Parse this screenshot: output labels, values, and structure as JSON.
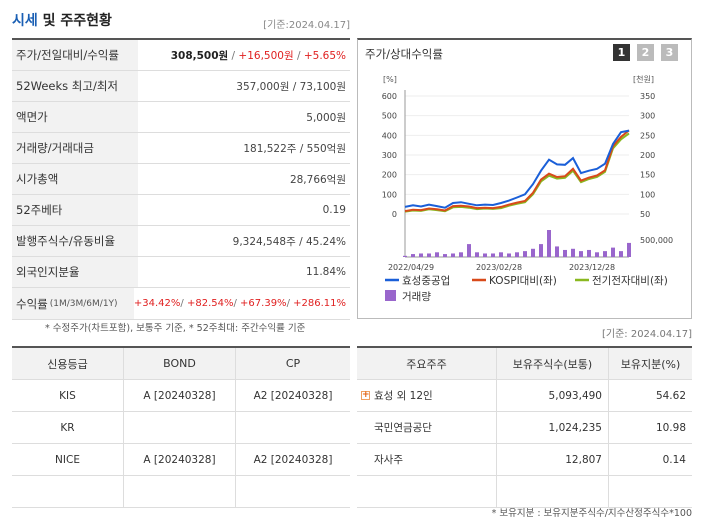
{
  "header": {
    "title_accent": "시세",
    "title_rest": " 및 주주현황",
    "date": "[기준:2024.04.17]"
  },
  "quote": {
    "rows": [
      {
        "label": "주가/전일대비/수익률"
      },
      {
        "label": "52Weeks 최고/최저",
        "value": "357,000원 / 73,100원"
      },
      {
        "label": "액면가",
        "value": "5,000원"
      },
      {
        "label": "거래량/거래대금",
        "value": "181,522주 / 550억원"
      },
      {
        "label": "시가총액",
        "value": "28,766억원"
      },
      {
        "label": "52주베타",
        "value": "0.19"
      },
      {
        "label": "발행주식수/유동비율",
        "value": "9,324,548주 / 45.24%"
      },
      {
        "label": "외국인지분율",
        "value": "11.84%"
      }
    ],
    "price": "308,500원",
    "change": "+16,500원",
    "rate": "+5.65%",
    "sep": " / ",
    "return_label": "수익률",
    "return_periods": "(1M/3M/6M/1Y)",
    "returns": [
      "+34.42%",
      "+82.54%",
      "+67.39%",
      "+286.11%"
    ],
    "note": "* 수정주가(차트포함), 보통주 기준, * 52주최대: 주간수익률 기준"
  },
  "chart_panel": {
    "title": "주가/상대수익률",
    "period_buttons": [
      "1",
      "2",
      "3"
    ],
    "selected": "1",
    "date_note": "[기준: 2024.04.17]"
  },
  "chart_data": {
    "type": "line",
    "left_axis_unit": "[%]",
    "right_axis_unit": "[천원]",
    "left_ticks": [
      0,
      100,
      200,
      300,
      400,
      500,
      600
    ],
    "right_ticks": [
      50,
      100,
      150,
      200,
      250,
      300,
      350
    ],
    "volume_tick": "500,000",
    "x_labels": [
      "2022/04/29",
      "2023/02/28",
      "2023/12/28"
    ],
    "right_ylim": [
      50,
      350
    ],
    "left_ylim": [
      0,
      600
    ],
    "series": [
      {
        "name": "효성중공업",
        "color": "#1a5fd8",
        "axis": "right",
        "values": [
          68,
          72,
          69,
          74,
          70,
          66,
          78,
          80,
          76,
          72,
          74,
          73,
          78,
          84,
          92,
          100,
          126,
          160,
          188,
          176,
          175,
          192,
          154,
          160,
          165,
          178,
          228,
          258,
          262
        ]
      },
      {
        "name": "KOSPI대비(좌)",
        "color": "#d84a1a",
        "axis": "left",
        "values": [
          15,
          22,
          20,
          28,
          24,
          18,
          40,
          42,
          38,
          30,
          32,
          30,
          36,
          48,
          58,
          66,
          108,
          175,
          205,
          188,
          192,
          230,
          170,
          185,
          196,
          222,
          345,
          392,
          425
        ]
      },
      {
        "name": "전기전자대비(좌)",
        "color": "#8ab820",
        "axis": "left",
        "values": [
          12,
          18,
          16,
          24,
          20,
          14,
          34,
          36,
          32,
          25,
          28,
          26,
          30,
          42,
          52,
          60,
          100,
          165,
          195,
          180,
          184,
          220,
          162,
          178,
          188,
          214,
          334,
          380,
          410
        ]
      }
    ],
    "volume": {
      "name": "거래량",
      "color": "#9966cc",
      "values": [
        0.02,
        0.05,
        0.06,
        0.06,
        0.08,
        0.05,
        0.06,
        0.08,
        0.22,
        0.08,
        0.06,
        0.06,
        0.08,
        0.06,
        0.08,
        0.1,
        0.14,
        0.22,
        0.46,
        0.18,
        0.12,
        0.14,
        0.1,
        0.12,
        0.08,
        0.1,
        0.16,
        0.1,
        0.24
      ],
      "max_label_value": 500000
    }
  },
  "credit": {
    "headers": [
      "신용등급",
      "BOND",
      "CP"
    ],
    "rows": [
      [
        "KIS",
        "A [20240328]",
        "A2 [20240328]"
      ],
      [
        "KR",
        "",
        ""
      ],
      [
        "NICE",
        "A [20240328]",
        "A2 [20240328]"
      ],
      [
        "",
        "",
        ""
      ]
    ]
  },
  "holders": {
    "headers": [
      "주요주주",
      "보유주식수(보통)",
      "보유지분(%)"
    ],
    "rows": [
      [
        "효성 외 12인",
        "5,093,490",
        "54.62"
      ],
      [
        "국민연금공단",
        "1,024,235",
        "10.98"
      ],
      [
        "자사주",
        "12,807",
        "0.14"
      ],
      [
        "",
        "",
        ""
      ]
    ],
    "note": "* 보유지분 : 보유지분주식수/지수산정주식수*100"
  }
}
